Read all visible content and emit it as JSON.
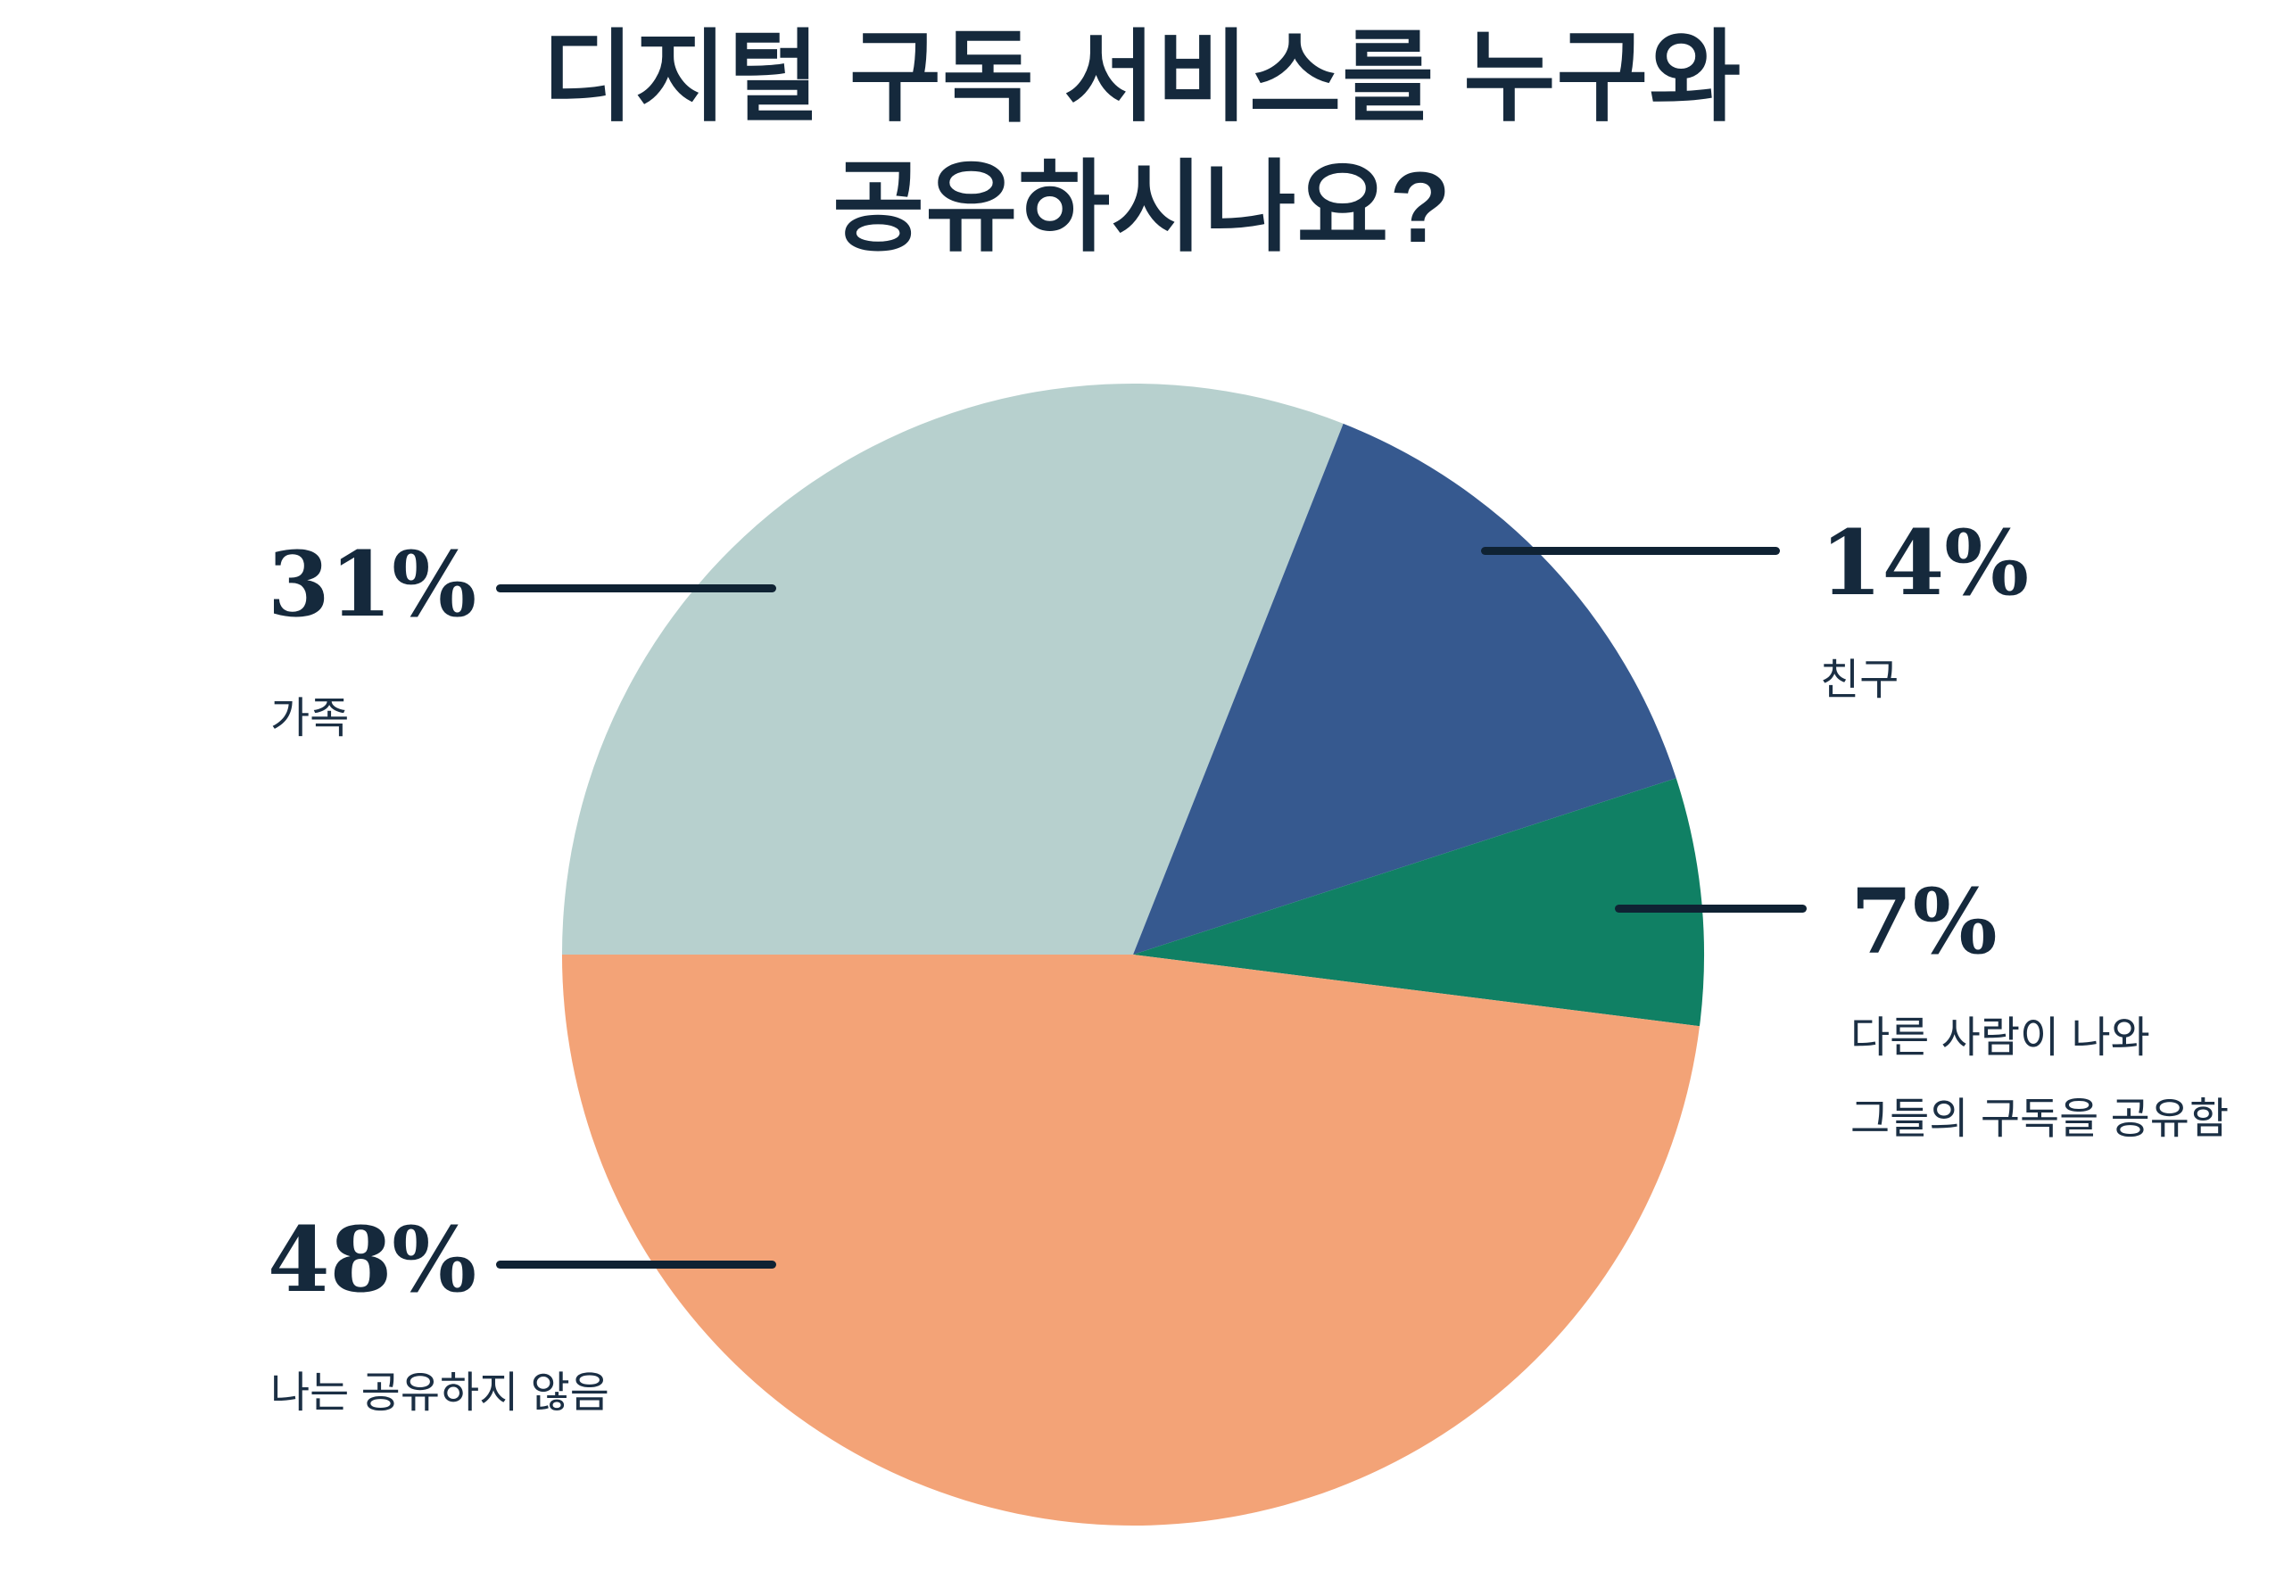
{
  "title": {
    "line1": "디지털 구독 서비스를 누구와",
    "line2": "공유하시나요?"
  },
  "chart_data": {
    "type": "pie",
    "title": "디지털 구독 서비스를 누구와 공유하시나요?",
    "start_angle_deg": 270,
    "direction": "clockwise",
    "legend_position": "callout-labels",
    "segments": [
      {
        "key": "family",
        "label": "가족",
        "value_pct": 31,
        "color": "#B7D0CE"
      },
      {
        "key": "friends",
        "label": "친구",
        "value_pct": 14,
        "color": "#36598F"
      },
      {
        "key": "shared-with-me",
        "label": "다른 사람이 나와 그들의 구독을 공유함",
        "value_pct": 7,
        "color": "#108064"
      },
      {
        "key": "not-sharing",
        "label": "나는 공유하지 않음",
        "value_pct": 48,
        "color": "#F3A377"
      }
    ]
  },
  "callouts": {
    "family": {
      "pct": "31%",
      "label": "가족"
    },
    "friends": {
      "pct": "14%",
      "label": "친구"
    },
    "shared_with_me": {
      "pct": "7%",
      "label_line1": "다른 사람이 나와",
      "label_line2": "그들의 구독을 공유함"
    },
    "not_sharing": {
      "pct": "48%",
      "label": "나는 공유하지 않음"
    }
  },
  "colors": {
    "background": "#FFFFFF",
    "title_text": "#15293C",
    "number_text": "#15293C",
    "label_text": "#1B2F44",
    "leader_line": "#0F2233"
  }
}
